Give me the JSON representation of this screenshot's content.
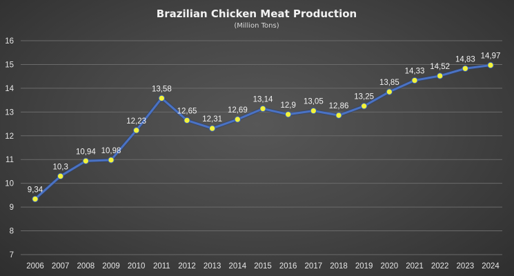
{
  "chart_data": {
    "type": "line",
    "title": "Brazilian Chicken Meat Production",
    "subtitle": "(Million Tons)",
    "xlabel": "",
    "ylabel": "",
    "ylim": [
      7,
      16
    ],
    "yticks": [
      "7",
      "8",
      "9",
      "10",
      "11",
      "12",
      "13",
      "14",
      "15",
      "16"
    ],
    "grid": true,
    "categories": [
      "2006",
      "2007",
      "2008",
      "2009",
      "2010",
      "2011",
      "2012",
      "2013",
      "2014",
      "2015",
      "2016",
      "2017",
      "2018",
      "2019",
      "2020",
      "2021",
      "2022",
      "2023",
      "2024"
    ],
    "values": [
      9.34,
      10.3,
      10.94,
      10.98,
      12.23,
      13.58,
      12.65,
      12.31,
      12.69,
      13.14,
      12.9,
      13.05,
      12.86,
      13.25,
      13.85,
      14.33,
      14.52,
      14.83,
      14.97
    ],
    "data_labels": [
      "9,34",
      "10,3",
      "10,94",
      "10,98",
      "12,23",
      "13,58",
      "12,65",
      "12,31",
      "12,69",
      "13,14",
      "12,9",
      "13,05",
      "12,86",
      "13,25",
      "13,85",
      "14,33",
      "14,52",
      "14,83",
      "14,97"
    ],
    "colors": {
      "line": "#4a72c4",
      "marker": "#f2f23a",
      "grid": "#6b6b6b",
      "text": "#f2f2f2"
    }
  }
}
